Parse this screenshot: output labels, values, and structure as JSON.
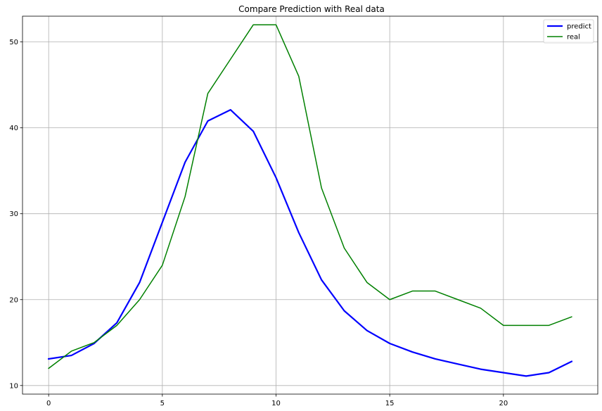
{
  "chart_data": {
    "type": "line",
    "title": "Compare Prediction with Real data",
    "xlabel": "",
    "ylabel": "",
    "xlim": [
      -1.15,
      24.15
    ],
    "ylim": [
      9.0,
      53.0
    ],
    "xticks": [
      0,
      5,
      10,
      15,
      20
    ],
    "yticks": [
      10,
      20,
      30,
      40,
      50
    ],
    "grid": true,
    "legend_position": "top-right",
    "x": [
      0,
      1,
      2,
      3,
      4,
      5,
      6,
      7,
      8,
      9,
      10,
      11,
      12,
      13,
      14,
      15,
      16,
      17,
      18,
      19,
      20,
      21,
      22,
      23
    ],
    "series": [
      {
        "name": "predict",
        "color": "#0000ff",
        "values": [
          13.1,
          13.5,
          14.9,
          17.3,
          22.0,
          29.0,
          36.0,
          40.8,
          42.1,
          39.6,
          34.2,
          27.8,
          22.3,
          18.7,
          16.4,
          14.9,
          13.9,
          13.1,
          12.5,
          11.9,
          11.5,
          11.1,
          11.5,
          12.8
        ]
      },
      {
        "name": "real",
        "color": "#008000",
        "values": [
          12,
          14,
          15,
          17,
          20,
          24,
          32,
          44,
          48,
          52,
          52,
          46,
          33,
          26,
          22,
          20,
          21,
          21,
          20,
          19,
          17,
          17,
          17,
          18
        ]
      }
    ]
  }
}
